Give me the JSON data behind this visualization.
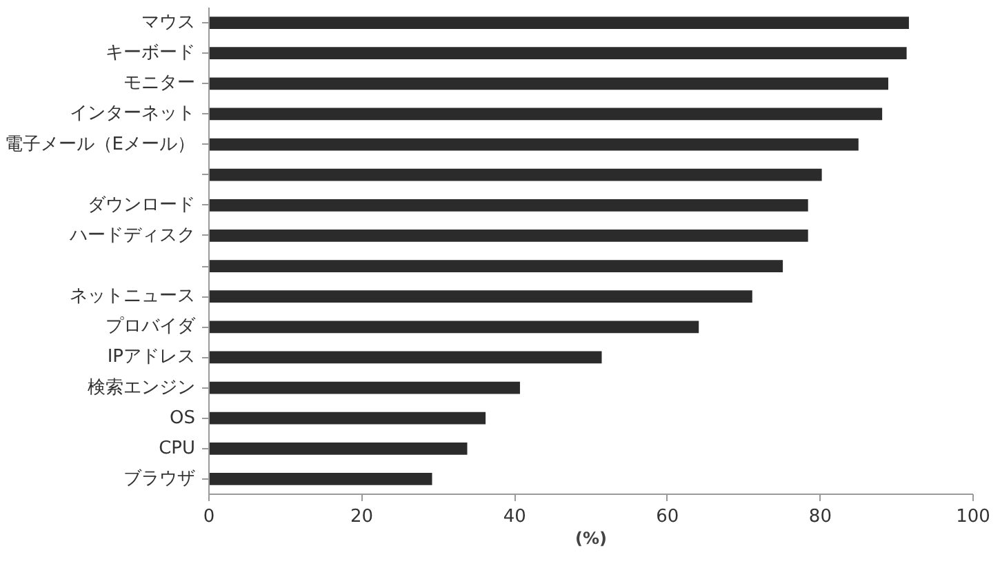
{
  "chart_data": {
    "type": "bar",
    "orientation": "horizontal",
    "xlabel": "(%)",
    "categories": [
      "マウス",
      "キーボード",
      "モニター",
      "インターネット",
      "電子メール（Eメール）",
      null,
      "ダウンロード",
      "ハードディスク",
      null,
      "ネットニュース",
      "プロバイダ",
      "IPアドレス",
      "検索エンジン",
      "OS",
      "CPU",
      "ブラウザ"
    ],
    "values": [
      91.6,
      91.3,
      88.9,
      88.1,
      85.0,
      80.2,
      78.4,
      78.4,
      75.1,
      71.1,
      64.1,
      51.4,
      40.7,
      36.2,
      33.8,
      29.2
    ],
    "color": "#2b2b2b",
    "xlim": [
      0,
      100
    ],
    "xticks": [
      0,
      20,
      40,
      60,
      80,
      100
    ],
    "grid": false
  }
}
